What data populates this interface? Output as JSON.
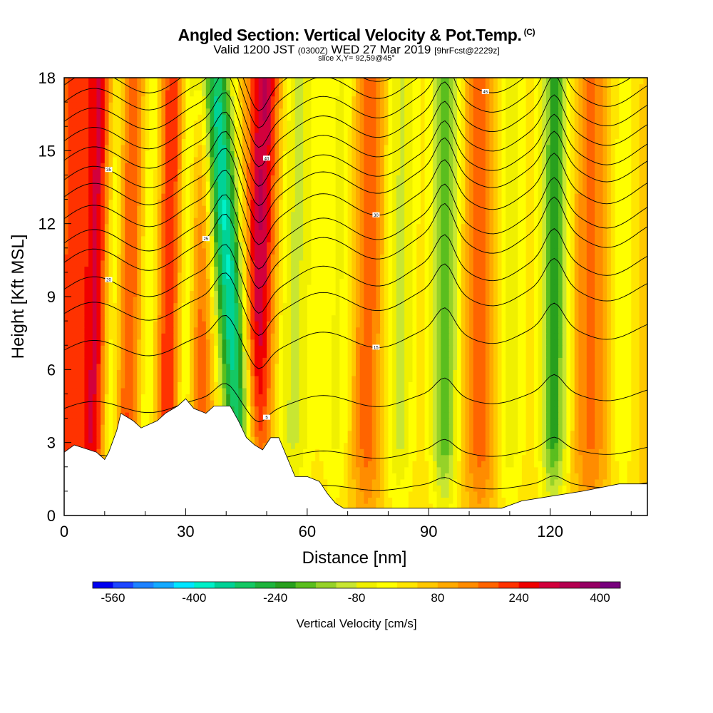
{
  "header": {
    "title": "Angled Section: Vertical Velocity & Pot.Temp.",
    "title_suffix": "(C)",
    "valid_prefix": "Valid 1200 JST",
    "valid_zulu": "(0300Z)",
    "valid_date": "WED 27 Mar 2019",
    "valid_fcst": "[9hrFcst@2229z]",
    "slice": "slice X,Y= 92,59@45°"
  },
  "chart_data": {
    "type": "heatmap",
    "title": "Angled Section: Vertical Velocity & Pot.Temp.",
    "xlabel": "Distance [nm]",
    "ylabel": "Height [Kft MSL]",
    "xlim": [
      0,
      144
    ],
    "ylim": [
      0,
      18
    ],
    "x_ticks": [
      0,
      30,
      60,
      90,
      120
    ],
    "y_ticks": [
      0,
      3,
      6,
      9,
      12,
      15,
      18
    ],
    "colorbar": {
      "title": "Vertical Velocity [cm/s]",
      "labels": [
        -560,
        -400,
        -240,
        -80,
        80,
        240,
        400
      ],
      "levels": [
        -600,
        -560,
        -520,
        -480,
        -440,
        -400,
        -360,
        -320,
        -280,
        -240,
        -200,
        -160,
        -120,
        -80,
        -40,
        0,
        40,
        80,
        120,
        160,
        200,
        240,
        280,
        320,
        360,
        400,
        440
      ],
      "colors": [
        "#0000f0",
        "#1e46ff",
        "#1e82ff",
        "#14aaff",
        "#00e6ff",
        "#00f0c8",
        "#00d296",
        "#14c864",
        "#1eb43c",
        "#28a01e",
        "#5abe1e",
        "#96d228",
        "#c8e632",
        "#f0f000",
        "#ffff00",
        "#ffe600",
        "#ffc800",
        "#ffaa00",
        "#ff8c00",
        "#ff6400",
        "#ff3200",
        "#f00000",
        "#d2003c",
        "#b40050",
        "#960064",
        "#78007d",
        "#550096"
      ]
    },
    "velocity_bands": [
      {
        "x_base": 2,
        "tilt": 0.12,
        "value": 180,
        "width": 4
      },
      {
        "x_base": 8,
        "tilt": 0.12,
        "value": 220,
        "width": 3
      },
      {
        "x_base": 12,
        "tilt": 0.12,
        "value": -120,
        "width": 2.5
      },
      {
        "x_base": 16,
        "tilt": 0.1,
        "value": 160,
        "width": 3
      },
      {
        "x_base": 21,
        "tilt": 0.1,
        "value": -100,
        "width": 2.5
      },
      {
        "x_base": 26,
        "tilt": 0.1,
        "value": 200,
        "width": 3
      },
      {
        "x_base": 30,
        "tilt": 0.1,
        "value": -120,
        "width": 2.5
      },
      {
        "x_base": 34,
        "tilt": 0.05,
        "value": 140,
        "width": 3
      },
      {
        "x_base": 41,
        "tilt": -0.45,
        "value": -420,
        "width": 4
      },
      {
        "x_base": 48,
        "tilt": 0.18,
        "value": 280,
        "width": 4
      },
      {
        "x_base": 57,
        "tilt": 0.1,
        "value": -140,
        "width": 5
      },
      {
        "x_base": 68,
        "tilt": 0.1,
        "value": -100,
        "width": 4
      },
      {
        "x_base": 75,
        "tilt": 0.05,
        "value": 140,
        "width": 4
      },
      {
        "x_base": 83,
        "tilt": 0.05,
        "value": -140,
        "width": 4
      },
      {
        "x_base": 94,
        "tilt": 0.02,
        "value": -240,
        "width": 3.5
      },
      {
        "x_base": 103,
        "tilt": 0.02,
        "value": 140,
        "width": 4
      },
      {
        "x_base": 110,
        "tilt": 0.02,
        "value": -120,
        "width": 4
      },
      {
        "x_base": 121,
        "tilt": 0.02,
        "value": -260,
        "width": 3.5
      },
      {
        "x_base": 130,
        "tilt": 0.02,
        "value": 120,
        "width": 4
      },
      {
        "x_base": 138,
        "tilt": 0.02,
        "value": -80,
        "width": 3
      }
    ],
    "terrain": [
      [
        0,
        2.6
      ],
      [
        2.5,
        2.9
      ],
      [
        8,
        2.6
      ],
      [
        10,
        2.3
      ],
      [
        11,
        2.6
      ],
      [
        13,
        3.5
      ],
      [
        14,
        4.2
      ],
      [
        17,
        3.9
      ],
      [
        19,
        3.6
      ],
      [
        23,
        3.9
      ],
      [
        25,
        4.2
      ],
      [
        28,
        4.5
      ],
      [
        30,
        4.8
      ],
      [
        32,
        4.4
      ],
      [
        35,
        4.2
      ],
      [
        37,
        4.5
      ],
      [
        41,
        4.5
      ],
      [
        43,
        3.9
      ],
      [
        45,
        3.2
      ],
      [
        47,
        2.9
      ],
      [
        49,
        2.7
      ],
      [
        51,
        3.2
      ],
      [
        53,
        3.2
      ],
      [
        55,
        2.4
      ],
      [
        57,
        1.6
      ],
      [
        60,
        1.6
      ],
      [
        63,
        1.4
      ],
      [
        65,
        0.9
      ],
      [
        67,
        0.5
      ],
      [
        69,
        0.3
      ],
      [
        80,
        0.3
      ],
      [
        102,
        0.3
      ],
      [
        108,
        0.3
      ],
      [
        113,
        0.6
      ],
      [
        128,
        1.0
      ],
      [
        137,
        1.3
      ],
      [
        144,
        1.3
      ]
    ],
    "isentropes": [
      {
        "base": 1.0,
        "label": ""
      },
      {
        "base": 2.3,
        "label": ""
      },
      {
        "base": 4.4,
        "label": "5"
      },
      {
        "base": 6.8,
        "label": "15"
      },
      {
        "base": 8.3,
        "label": ""
      },
      {
        "base": 9.3,
        "label": "20"
      },
      {
        "base": 10.4,
        "label": "25"
      },
      {
        "base": 11.2,
        "label": ""
      },
      {
        "base": 12.2,
        "label": "30"
      },
      {
        "base": 13.1,
        "label": ""
      },
      {
        "base": 13.8,
        "label": "35"
      },
      {
        "base": 14.6,
        "label": ""
      },
      {
        "base": 15.4,
        "label": "40"
      },
      {
        "base": 16.2,
        "label": ""
      },
      {
        "base": 17.0,
        "label": "45"
      },
      {
        "base": 17.7,
        "label": ""
      }
    ]
  }
}
